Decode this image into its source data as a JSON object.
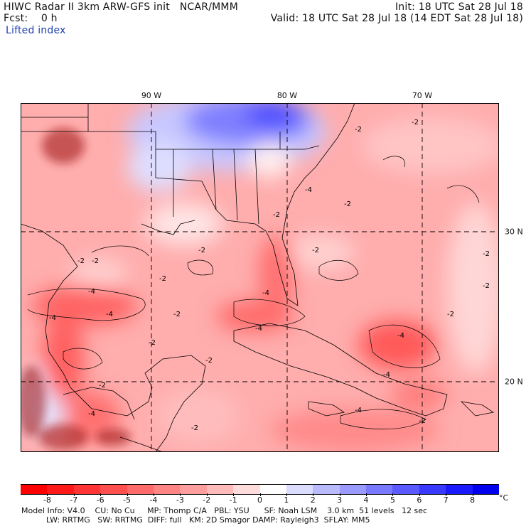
{
  "header": {
    "title_left": "HIWC Radar II 3km ARW-GFS init   NCAR/MMM",
    "forecast": "Fcst:    0 h",
    "field": "Lifted index",
    "init": "Init: 18 UTC Sat 28 Jul 18",
    "valid": "Valid: 18 UTC Sat 28 Jul 18 (14 EDT Sat 28 Jul 18)"
  },
  "map": {
    "longitude_labels": [
      {
        "label": "90 W",
        "lon": -90
      },
      {
        "label": "80 W",
        "lon": -80
      },
      {
        "label": "70 W",
        "lon": -70
      }
    ],
    "latitude_labels": [
      {
        "label": "30 N",
        "lat": 30
      },
      {
        "label": "20 N",
        "lat": 20
      }
    ],
    "contour_labels": [
      "-2",
      "-2",
      "-2",
      "-2",
      "-4",
      "-4",
      "-4",
      "-4",
      "-2",
      "-2",
      "-2",
      "-2",
      "-4",
      "-2",
      "-2",
      "-4",
      "-2",
      "-2",
      "-2",
      "-4",
      "-2",
      "-4",
      "-2",
      "-4",
      "-2",
      "-2",
      "-4",
      "-2"
    ],
    "colors": {
      "stable_max": "#1414d8",
      "neutral": "#ffffff",
      "unstable_max": "#ff0000",
      "land_detail": "#8b0000",
      "boundaries": "#000000",
      "grid": "#000000"
    }
  },
  "colorbar": {
    "unit": "°C",
    "tick_labels": [
      "-8",
      "-7",
      "-6",
      "-5",
      "-4",
      "-3",
      "-2",
      "-1",
      "0",
      "1",
      "2",
      "3",
      "4",
      "5",
      "6",
      "7",
      "8"
    ],
    "colors": [
      "#ff0000",
      "#ff1a1a",
      "#ff3434",
      "#ff5050",
      "#ff6a6a",
      "#ff8484",
      "#ff9e9e",
      "#ffbaba",
      "#ffdcdc",
      "#ffffff",
      "#dcdcff",
      "#babaff",
      "#9a9aff",
      "#7a7aff",
      "#5a5aff",
      "#3a3aff",
      "#1a1aff",
      "#0000ee"
    ]
  },
  "footer": {
    "line1": "Model Info: V4.0    CU: No Cu     MP: Thomp C/A   PBL: YSU      SF: Noah LSM    3.0 km  51 levels   12 sec",
    "line2": "          LW: RRTMG   SW: RRTMG  DIFF: full   KM: 2D Smagor DAMP: Rayleigh3  SFLAY: MM5"
  }
}
